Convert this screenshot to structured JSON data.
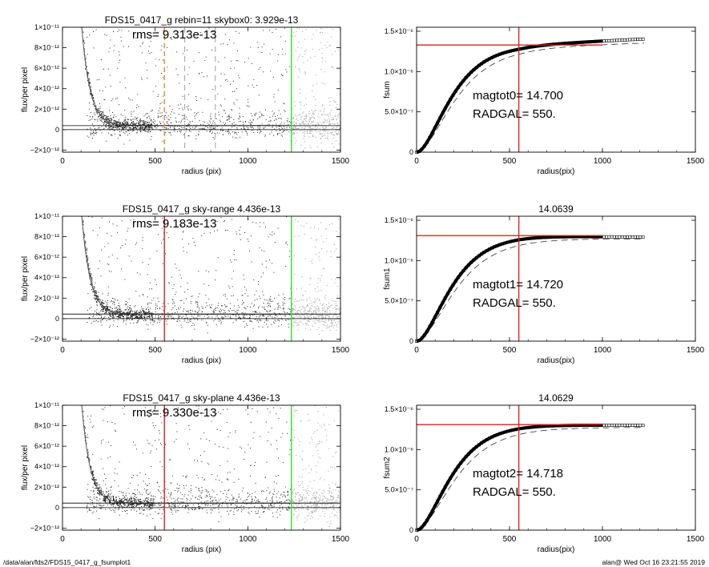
{
  "footer": {
    "left": "/data/alan/fds2/FDS15_0417_g_fsumplot1",
    "right": "alan@  Wed Oct 16 23:21:55 2019"
  },
  "colors": {
    "points_dark": "#222222",
    "points_light": "#a8a8a8",
    "green": "#33dd33",
    "red": "#dd2222",
    "orange": "#e8882a",
    "dash_gray": "#888888",
    "axes": "#000000"
  },
  "chart_data": [
    {
      "type": "scatter",
      "title": "FDS15_0417_g rebin=11    skybox0:  3.929e-13",
      "annotation": "rms= 9.313e-13",
      "xlabel": "radius (pix)",
      "ylabel": "flux/per pixel",
      "xlim": [
        0,
        1500
      ],
      "ylim": [
        -2.2e-12,
        1e-11
      ],
      "xticks": [
        0,
        500,
        1000,
        1500
      ],
      "xtick_labels": [
        "0",
        "500",
        "1000",
        "1500"
      ],
      "yticks": [
        -2e-12,
        0,
        2e-12,
        4e-12,
        6e-12,
        8e-12,
        1e-11
      ],
      "ytick_labels": [
        "−2×10⁻¹²",
        "0",
        "2×10⁻¹²",
        "4×10⁻¹²",
        "6×10⁻¹²",
        "8×10⁻¹²",
        "1×10⁻¹¹"
      ],
      "profile": {
        "amplitude": 1.05e-11,
        "scale": 45,
        "offset": 100,
        "sky": 3.929e-13
      },
      "hlines": [
        3.929e-13,
        0
      ],
      "vlines": [
        {
          "x": 550,
          "color": "orange",
          "style": "dashed"
        },
        {
          "x": 660,
          "color": "dash_gray",
          "style": "dashed"
        },
        {
          "x": 825,
          "color": "dash_gray",
          "style": "dashed"
        },
        {
          "x": 1235,
          "color": "green",
          "style": "solid"
        }
      ],
      "bright_region_start": 1235,
      "scatter_counts": {
        "dark": 900,
        "light": 420
      }
    },
    {
      "type": "line",
      "title": "",
      "xlabel": "radius(pix)",
      "ylabel": "fsum",
      "xlim": [
        0,
        1500
      ],
      "ylim": [
        0,
        1.55e-06
      ],
      "xticks": [
        0,
        500,
        1000,
        1500
      ],
      "xtick_labels": [
        "0",
        "500",
        "1000",
        "1500"
      ],
      "yticks": [
        0,
        5e-07,
        1e-06,
        1.5e-06
      ],
      "ytick_labels": [
        "0",
        "5.0×10⁻⁷",
        "1.0×10⁻⁶",
        "1.5×10⁻⁶"
      ],
      "annotation_lines": [
        "magtot0=  14.700",
        "RADGAL=    550."
      ],
      "curve": {
        "asymptote": 1.33e-06,
        "scale": 110,
        "end_value": 1.405e-06,
        "end_radius": 1230
      },
      "dashed_curve": {
        "asymptote": 1.3e-06,
        "scale": 125,
        "end_value": 1.355e-06
      },
      "red_hline": {
        "value": 1.33e-06,
        "x_end": 1000
      },
      "red_vline": 550
    },
    {
      "type": "scatter",
      "title": "FDS15_0417_g sky-range  4.436e-13",
      "annotation": "rms= 9.183e-13",
      "xlabel": "radius (pix)",
      "ylabel": "flux/per pixel",
      "xlim": [
        0,
        1500
      ],
      "ylim": [
        -2.2e-12,
        1e-11
      ],
      "xticks": [
        0,
        500,
        1000,
        1500
      ],
      "xtick_labels": [
        "0",
        "500",
        "1000",
        "1500"
      ],
      "yticks": [
        -2e-12,
        0,
        2e-12,
        4e-12,
        6e-12,
        8e-12,
        1e-11
      ],
      "ytick_labels": [
        "−2×10⁻¹²",
        "0",
        "2×10⁻¹²",
        "4×10⁻¹²",
        "6×10⁻¹²",
        "8×10⁻¹²",
        "1×10⁻¹¹"
      ],
      "profile": {
        "amplitude": 1.05e-11,
        "scale": 45,
        "offset": 100,
        "sky": 4.436e-13
      },
      "hlines": [
        4.436e-13,
        0
      ],
      "vlines": [
        {
          "x": 550,
          "color": "red",
          "style": "solid"
        },
        {
          "x": 1235,
          "color": "green",
          "style": "solid"
        }
      ],
      "bright_region_start": 1235,
      "scatter_counts": {
        "dark": 900,
        "light": 420
      }
    },
    {
      "type": "line",
      "title": "14.0639",
      "xlabel": "radius(pix)",
      "ylabel": "fsum1",
      "xlim": [
        0,
        1500
      ],
      "ylim": [
        0,
        1.55e-06
      ],
      "xticks": [
        0,
        500,
        1000,
        1500
      ],
      "xtick_labels": [
        "0",
        "500",
        "1000",
        "1500"
      ],
      "yticks": [
        0,
        5e-07,
        1e-06,
        1.5e-06
      ],
      "ytick_labels": [
        "0",
        "5.0×10⁻⁷",
        "1.0×10⁻⁶",
        "1.5×10⁻⁶"
      ],
      "annotation_lines": [
        "magtot1=  14.720",
        "RADGAL=    550."
      ],
      "curve": {
        "asymptote": 1.31e-06,
        "scale": 110,
        "end_value": 1.29e-06,
        "end_radius": 1230
      },
      "dashed_curve": {
        "asymptote": 1.27e-06,
        "scale": 125,
        "end_value": 1.27e-06
      },
      "red_hline": {
        "value": 1.31e-06,
        "x_end": 1000
      },
      "red_vline": 550
    },
    {
      "type": "scatter",
      "title": "FDS15_0417_g sky-plane  4.436e-13",
      "annotation": "rms= 9.330e-13",
      "xlabel": "radius (pix)",
      "ylabel": "flux/per pixel",
      "xlim": [
        0,
        1500
      ],
      "ylim": [
        -2.2e-12,
        1e-11
      ],
      "xticks": [
        0,
        500,
        1000,
        1500
      ],
      "xtick_labels": [
        "0",
        "500",
        "1000",
        "1500"
      ],
      "yticks": [
        -2e-12,
        0,
        2e-12,
        4e-12,
        6e-12,
        8e-12,
        1e-11
      ],
      "ytick_labels": [
        "−2×10⁻¹²",
        "0",
        "2×10⁻¹²",
        "4×10⁻¹²",
        "6×10⁻¹²",
        "8×10⁻¹²",
        "1×10⁻¹¹"
      ],
      "profile": {
        "amplitude": 1.05e-11,
        "scale": 45,
        "offset": 100,
        "sky": 4.436e-13
      },
      "hlines": [
        4.436e-13,
        0
      ],
      "vlines": [
        {
          "x": 550,
          "color": "red",
          "style": "solid"
        },
        {
          "x": 1235,
          "color": "green",
          "style": "solid"
        }
      ],
      "bright_region_start": 1235,
      "scatter_counts": {
        "dark": 900,
        "light": 420
      }
    },
    {
      "type": "line",
      "title": "14.0629",
      "xlabel": "radius(pix)",
      "ylabel": "fsum2",
      "xlim": [
        0,
        1500
      ],
      "ylim": [
        0,
        1.55e-06
      ],
      "xticks": [
        0,
        500,
        1000,
        1500
      ],
      "xtick_labels": [
        "0",
        "500",
        "1000",
        "1500"
      ],
      "yticks": [
        0,
        5e-07,
        1e-06,
        1.5e-06
      ],
      "ytick_labels": [
        "0",
        "5.0×10⁻⁷",
        "1.0×10⁻⁶",
        "1.5×10⁻⁶"
      ],
      "annotation_lines": [
        "magtot2=  14.718",
        "RADGAL=    550."
      ],
      "curve": {
        "asymptote": 1.31e-06,
        "scale": 110,
        "end_value": 1.3e-06,
        "end_radius": 1230
      },
      "dashed_curve": {
        "asymptote": 1.27e-06,
        "scale": 125,
        "end_value": 1.275e-06
      },
      "red_hline": {
        "value": 1.31e-06,
        "x_end": 1000
      },
      "red_vline": 550
    }
  ]
}
